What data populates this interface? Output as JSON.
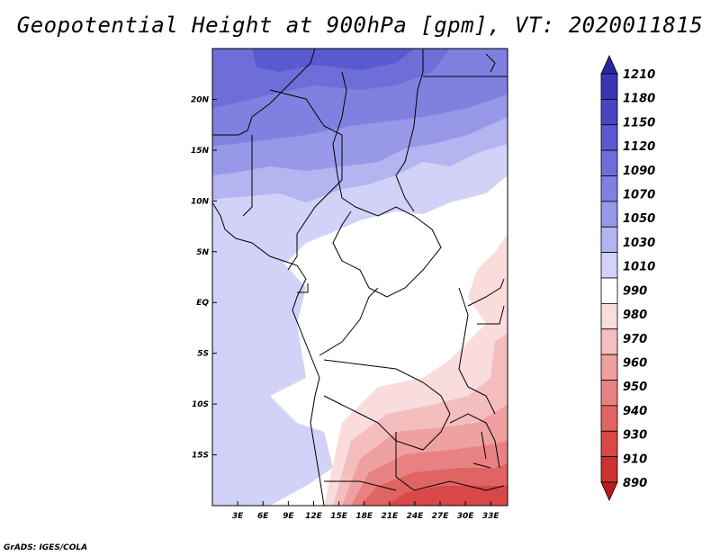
{
  "title": "Geopotential Height at 900hPa [gpm], VT: 2020011815",
  "footer": "GrADS: IGES/COLA",
  "axes": {
    "lat_labels": [
      "20N",
      "15N",
      "10N",
      "5N",
      "EQ",
      "5S",
      "10S",
      "15S"
    ],
    "lat_values": [
      20,
      15,
      10,
      5,
      0,
      -5,
      -10,
      -15
    ],
    "lon_labels": [
      "3E",
      "6E",
      "9E",
      "12E",
      "15E",
      "18E",
      "21E",
      "24E",
      "27E",
      "30E",
      "33E"
    ],
    "lon_values": [
      3,
      6,
      9,
      12,
      15,
      18,
      21,
      24,
      27,
      30,
      33
    ],
    "lon_range": [
      0,
      35
    ],
    "lat_range": [
      -20,
      25
    ]
  },
  "colorbar": {
    "labels": [
      "1210",
      "1180",
      "1150",
      "1120",
      "1090",
      "1070",
      "1050",
      "1030",
      "1010",
      "990",
      "980",
      "970",
      "960",
      "950",
      "940",
      "930",
      "910",
      "890"
    ],
    "colors": [
      "#28289e",
      "#3737b4",
      "#4646c3",
      "#5a5ad0",
      "#6e6ed8",
      "#8080e0",
      "#9898e8",
      "#b4b4f0",
      "#d2d2f8",
      "#ffffff",
      "#fadcdc",
      "#f5bebe",
      "#efa0a0",
      "#e88282",
      "#e06464",
      "#d84848",
      "#cc3030",
      "#b81c1c"
    ]
  },
  "colors": {
    "border": "#000000",
    "background": "#ffffff"
  }
}
